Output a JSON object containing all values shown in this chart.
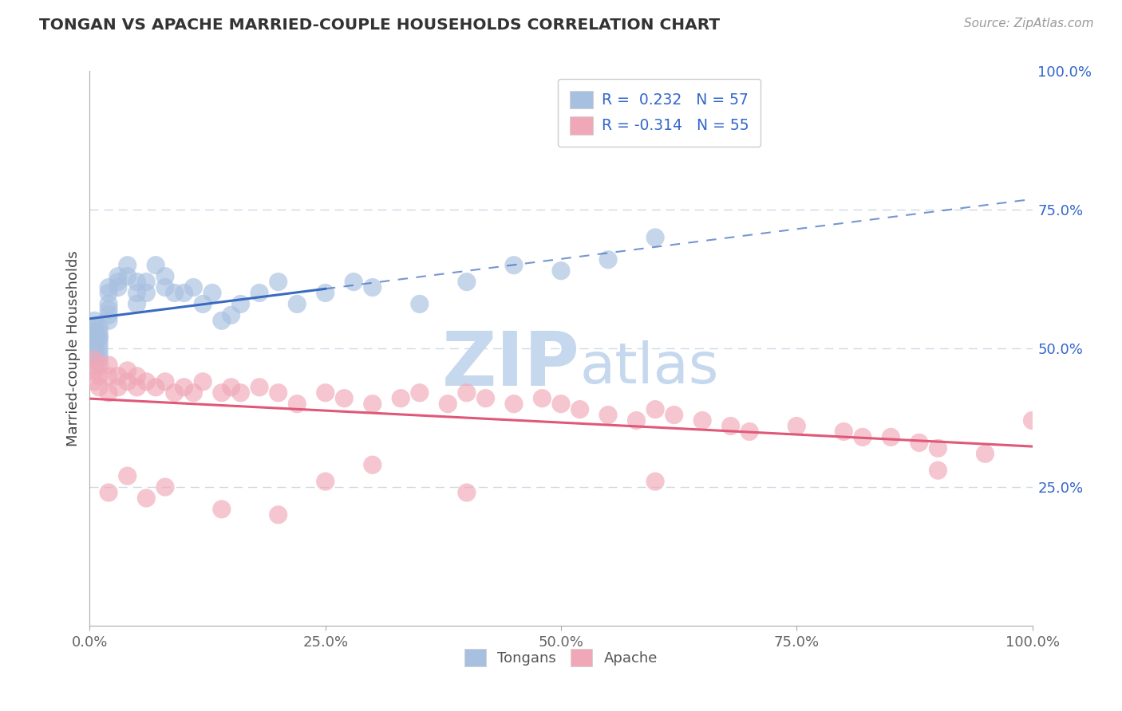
{
  "title": "TONGAN VS APACHE MARRIED-COUPLE HOUSEHOLDS CORRELATION CHART",
  "source_text": "Source: ZipAtlas.com",
  "ylabel": "Married-couple Households",
  "xlim": [
    0,
    100
  ],
  "ylim": [
    0,
    100
  ],
  "tongan_color": "#a8c0e0",
  "apache_color": "#f0a8b8",
  "tongan_line_color": "#3a6abf",
  "apache_line_color": "#e05878",
  "tongan_R": 0.232,
  "tongan_N": 57,
  "apache_R": -0.314,
  "apache_N": 55,
  "legend_R_color": "#3366cc",
  "legend_N_color": "#3366cc",
  "watermark_zip": "ZIP",
  "watermark_atlas": "atlas",
  "watermark_color": "#c5d8ee",
  "grid_color": "#d0dae5",
  "background_color": "#ffffff",
  "tongan_x": [
    0.5,
    0.5,
    0.5,
    0.5,
    0.5,
    0.5,
    0.5,
    0.5,
    0.5,
    0.5,
    1,
    1,
    1,
    1,
    1,
    1,
    1,
    1,
    2,
    2,
    2,
    2,
    2,
    2,
    3,
    3,
    3,
    4,
    4,
    5,
    5,
    5,
    6,
    6,
    7,
    8,
    8,
    9,
    10,
    11,
    12,
    13,
    14,
    15,
    16,
    18,
    20,
    22,
    25,
    28,
    30,
    35,
    40,
    45,
    50,
    55,
    60
  ],
  "tongan_y": [
    51,
    52,
    53,
    54,
    55,
    50,
    49,
    48,
    47,
    53,
    52,
    53,
    54,
    50,
    51,
    52,
    49,
    48,
    60,
    61,
    58,
    57,
    56,
    55,
    63,
    62,
    61,
    65,
    63,
    62,
    60,
    58,
    62,
    60,
    65,
    63,
    61,
    60,
    60,
    61,
    58,
    60,
    55,
    56,
    58,
    60,
    62,
    58,
    60,
    62,
    61,
    58,
    62,
    65,
    64,
    66,
    70
  ],
  "apache_x": [
    0.5,
    0.5,
    0.5,
    1,
    1,
    1,
    2,
    2,
    2,
    3,
    3,
    4,
    4,
    5,
    5,
    6,
    7,
    8,
    9,
    10,
    11,
    12,
    14,
    15,
    16,
    18,
    20,
    22,
    25,
    27,
    30,
    33,
    35,
    38,
    40,
    42,
    45,
    48,
    50,
    52,
    55,
    58,
    60,
    62,
    65,
    68,
    70,
    75,
    80,
    82,
    85,
    88,
    90,
    95,
    100
  ],
  "apache_y": [
    44,
    46,
    48,
    43,
    45,
    47,
    42,
    45,
    47,
    43,
    45,
    44,
    46,
    43,
    45,
    44,
    43,
    44,
    42,
    43,
    42,
    44,
    42,
    43,
    42,
    43,
    42,
    40,
    42,
    41,
    40,
    41,
    42,
    40,
    42,
    41,
    40,
    41,
    40,
    39,
    38,
    37,
    39,
    38,
    37,
    36,
    35,
    36,
    35,
    34,
    34,
    33,
    32,
    31,
    37
  ],
  "apache_low_y": [
    24,
    27,
    23,
    25,
    21,
    20,
    26,
    29,
    24,
    26,
    28
  ],
  "apache_low_x": [
    2,
    4,
    6,
    8,
    14,
    20,
    25,
    30,
    40,
    60,
    90
  ]
}
